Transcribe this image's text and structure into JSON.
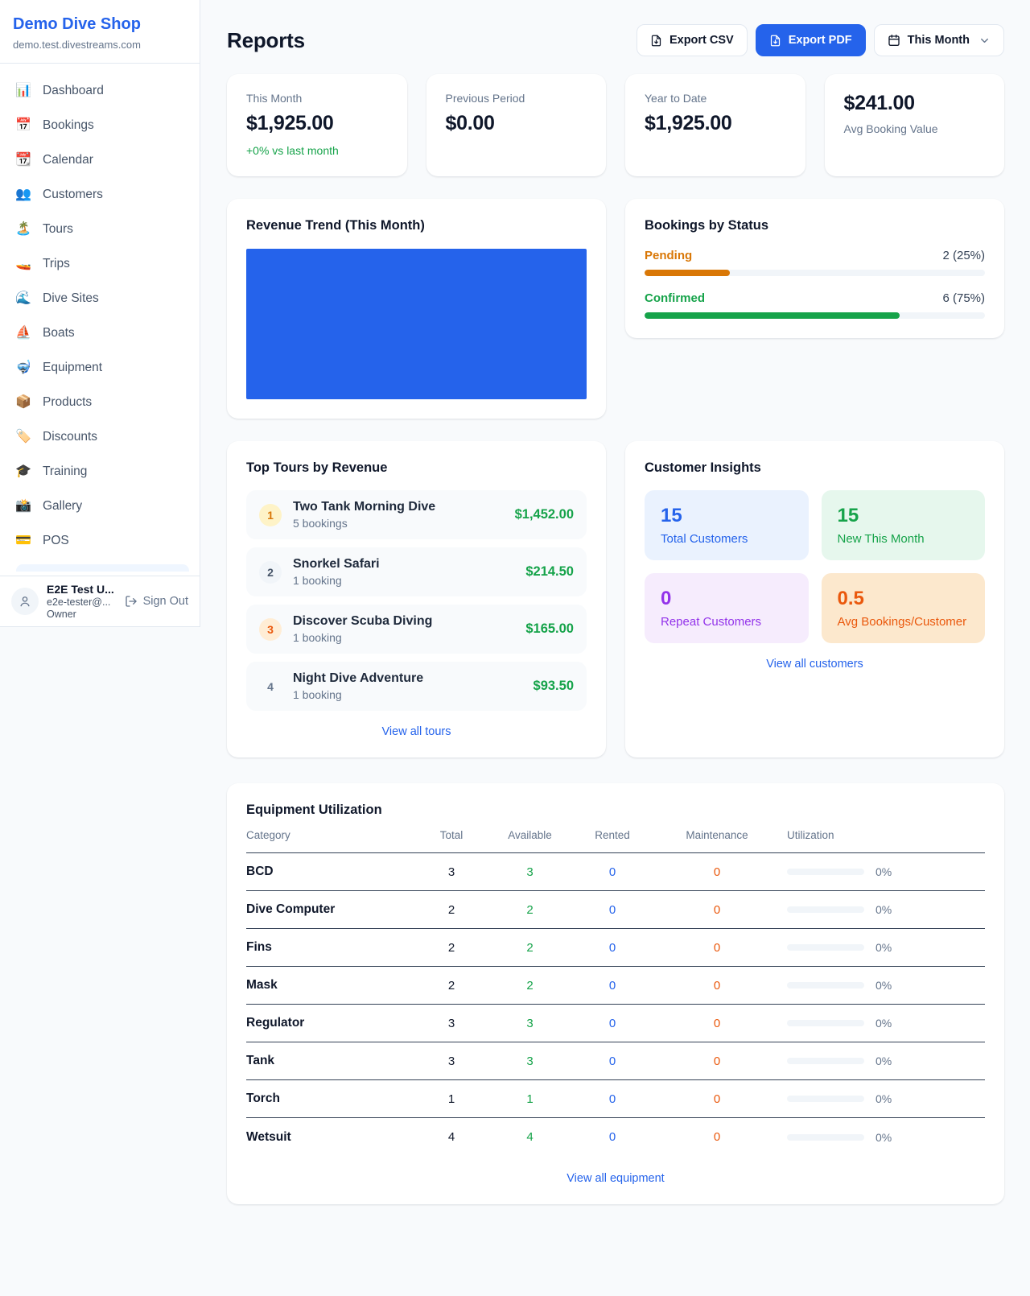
{
  "colors": {
    "accent": "#2563eb",
    "positive": "#16a34a",
    "pending": "#d97706",
    "maintenance": "#ea580c",
    "repeat": "#9333ea"
  },
  "sidebar": {
    "title": "Demo Dive Shop",
    "subdomain": "demo.test.divestreams.com",
    "items": [
      {
        "key": "dashboard",
        "icon": "📊",
        "label": "Dashboard"
      },
      {
        "key": "bookings",
        "icon": "📅",
        "label": "Bookings"
      },
      {
        "key": "calendar",
        "icon": "📆",
        "label": "Calendar"
      },
      {
        "key": "customers",
        "icon": "👥",
        "label": "Customers"
      },
      {
        "key": "tours",
        "icon": "🏝️",
        "label": "Tours"
      },
      {
        "key": "trips",
        "icon": "🚤",
        "label": "Trips"
      },
      {
        "key": "dive-sites",
        "icon": "🌊",
        "label": "Dive Sites"
      },
      {
        "key": "boats",
        "icon": "⛵",
        "label": "Boats"
      },
      {
        "key": "equipment",
        "icon": "🤿",
        "label": "Equipment"
      },
      {
        "key": "products",
        "icon": "📦",
        "label": "Products"
      },
      {
        "key": "discounts",
        "icon": "🏷️",
        "label": "Discounts"
      },
      {
        "key": "training",
        "icon": "🎓",
        "label": "Training"
      },
      {
        "key": "gallery",
        "icon": "📸",
        "label": "Gallery"
      },
      {
        "key": "pos",
        "icon": "💳",
        "label": "POS"
      }
    ],
    "user": {
      "name": "E2E Test U...",
      "email": "e2e-tester@...",
      "role": "Owner",
      "sign_out": "Sign Out"
    }
  },
  "header": {
    "title": "Reports",
    "export_csv": "Export CSV",
    "export_pdf": "Export PDF",
    "period": "This Month"
  },
  "stats": [
    {
      "label": "This Month",
      "value": "$1,925.00",
      "delta": "+0% vs last month"
    },
    {
      "label": "Previous Period",
      "value": "$0.00"
    },
    {
      "label": "Year to Date",
      "value": "$1,925.00"
    },
    {
      "label": "Avg Booking Value",
      "value": "$241.00"
    }
  ],
  "revenue_trend": {
    "title": "Revenue Trend (This Month)",
    "bar_color": "#2563eb"
  },
  "bookings_by_status": {
    "title": "Bookings by Status",
    "rows": [
      {
        "key": "pending",
        "label": "Pending",
        "count": "2 (25%)",
        "pct": 25,
        "color": "#d97706"
      },
      {
        "key": "confirmed",
        "label": "Confirmed",
        "count": "6 (75%)",
        "pct": 75,
        "color": "#16a34a"
      }
    ]
  },
  "top_tours": {
    "title": "Top Tours by Revenue",
    "rows": [
      {
        "key": "1",
        "rank": "1",
        "name": "Two Tank Morning Dive",
        "bookings": "5 bookings",
        "amount": "$1,452.00",
        "badge_bg": "#fef3c7",
        "badge_color": "#d97706"
      },
      {
        "key": "2",
        "rank": "2",
        "name": "Snorkel Safari",
        "bookings": "1 booking",
        "amount": "$214.50",
        "badge_bg": "#f1f5f9",
        "badge_color": "#475569"
      },
      {
        "key": "3",
        "rank": "3",
        "name": "Discover Scuba Diving",
        "bookings": "1 booking",
        "amount": "$165.00",
        "badge_bg": "#ffedd5",
        "badge_color": "#ea580c"
      },
      {
        "key": "4",
        "rank": "4",
        "name": "Night Dive Adventure",
        "bookings": "1 booking",
        "amount": "$93.50",
        "badge_bg": "transparent",
        "badge_color": "#64748b"
      }
    ],
    "link": "View all tours"
  },
  "customer_insights": {
    "title": "Customer Insights",
    "tiles": [
      {
        "key": "total-customers",
        "value": "15",
        "label": "Total Customers",
        "bg": "#eaf2fe",
        "color": "#2563eb"
      },
      {
        "key": "new-this-month",
        "value": "15",
        "label": "New This Month",
        "bg": "#e6f7ed",
        "color": "#16a34a"
      },
      {
        "key": "repeat-customers",
        "value": "0",
        "label": "Repeat Customers",
        "bg": "#f6ecfd",
        "color": "#9333ea"
      },
      {
        "key": "avg-bookings",
        "value": "0.5",
        "label": "Avg Bookings/Customer",
        "bg": "#fce8cd",
        "color": "#ea580c"
      }
    ],
    "link": "View all customers"
  },
  "equipment": {
    "title": "Equipment Utilization",
    "columns": [
      "Category",
      "Total",
      "Available",
      "Rented",
      "Maintenance",
      "Utilization"
    ],
    "rows": [
      {
        "key": "bcd",
        "category": "BCD",
        "total": "3",
        "available": "3",
        "rented": "0",
        "maintenance": "0",
        "pct": 0,
        "utilization": "0%"
      },
      {
        "key": "dive-computer",
        "category": "Dive Computer",
        "total": "2",
        "available": "2",
        "rented": "0",
        "maintenance": "0",
        "pct": 0,
        "utilization": "0%"
      },
      {
        "key": "fins",
        "category": "Fins",
        "total": "2",
        "available": "2",
        "rented": "0",
        "maintenance": "0",
        "pct": 0,
        "utilization": "0%"
      },
      {
        "key": "mask",
        "category": "Mask",
        "total": "2",
        "available": "2",
        "rented": "0",
        "maintenance": "0",
        "pct": 0,
        "utilization": "0%"
      },
      {
        "key": "regulator",
        "category": "Regulator",
        "total": "3",
        "available": "3",
        "rented": "0",
        "maintenance": "0",
        "pct": 0,
        "utilization": "0%"
      },
      {
        "key": "tank",
        "category": "Tank",
        "total": "3",
        "available": "3",
        "rented": "0",
        "maintenance": "0",
        "pct": 0,
        "utilization": "0%"
      },
      {
        "key": "torch",
        "category": "Torch",
        "total": "1",
        "available": "1",
        "rented": "0",
        "maintenance": "0",
        "pct": 0,
        "utilization": "0%"
      },
      {
        "key": "wetsuit",
        "category": "Wetsuit",
        "total": "4",
        "available": "4",
        "rented": "0",
        "maintenance": "0",
        "pct": 0,
        "utilization": "0%"
      }
    ],
    "link": "View all equipment"
  }
}
